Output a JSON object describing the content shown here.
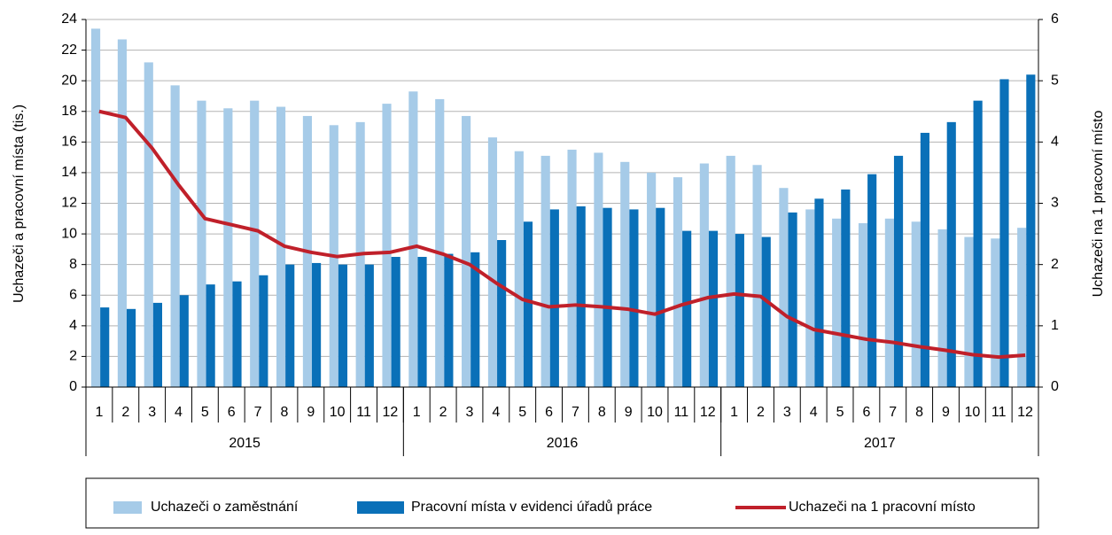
{
  "chart_data": {
    "type": "bar_line",
    "categories": [
      "1",
      "2",
      "3",
      "4",
      "5",
      "6",
      "7",
      "8",
      "9",
      "10",
      "11",
      "12",
      "1",
      "2",
      "3",
      "4",
      "5",
      "6",
      "7",
      "8",
      "9",
      "10",
      "11",
      "12",
      "1",
      "2",
      "3",
      "4",
      "5",
      "6",
      "7",
      "8",
      "9",
      "10",
      "11",
      "12"
    ],
    "years": [
      "2015",
      "2016",
      "2017"
    ],
    "y_label": "Uchazeči a pracovní místa (tis.)",
    "y2_label": "Uchazeči na 1 pracovní místo",
    "ylim": [
      0,
      24
    ],
    "yticks": [
      0,
      2,
      4,
      6,
      8,
      10,
      12,
      14,
      16,
      18,
      20,
      22,
      24
    ],
    "y2lim": [
      0,
      6
    ],
    "y2ticks": [
      0,
      1,
      2,
      3,
      4,
      5,
      6
    ],
    "grid": true,
    "series": [
      {
        "name": "Uchazeči o zaměstnání",
        "type": "bar",
        "color": "#a6cbe8",
        "values": [
          23.4,
          22.7,
          21.2,
          19.7,
          18.7,
          18.2,
          18.7,
          18.3,
          17.7,
          17.1,
          17.3,
          18.5,
          19.3,
          18.8,
          17.7,
          16.3,
          15.4,
          15.1,
          15.5,
          15.3,
          14.7,
          14.0,
          13.7,
          14.6,
          15.1,
          14.5,
          13.0,
          11.6,
          11.0,
          10.7,
          11.0,
          10.8,
          10.3,
          9.8,
          9.7,
          10.4
        ]
      },
      {
        "name": "Pracovní místa v evidenci úřadů práce",
        "type": "bar",
        "color": "#0a70b8",
        "values": [
          5.2,
          5.1,
          5.5,
          6.0,
          6.7,
          6.9,
          7.3,
          8.0,
          8.1,
          8.0,
          8.0,
          8.5,
          8.5,
          8.7,
          8.8,
          9.6,
          10.8,
          11.6,
          11.8,
          11.7,
          11.6,
          11.7,
          10.2,
          10.2,
          10.0,
          9.8,
          11.4,
          12.3,
          12.9,
          13.9,
          15.1,
          16.6,
          17.3,
          18.7,
          20.1,
          20.4
        ]
      },
      {
        "name": "Uchazeči na 1 pracovní místo",
        "type": "line",
        "axis": "y2",
        "color": "#c0202a",
        "values": [
          4.5,
          4.4,
          3.9,
          3.3,
          2.75,
          2.65,
          2.55,
          2.3,
          2.2,
          2.13,
          2.18,
          2.2,
          2.3,
          2.17,
          2.0,
          1.7,
          1.43,
          1.31,
          1.34,
          1.31,
          1.27,
          1.19,
          1.34,
          1.46,
          1.52,
          1.48,
          1.15,
          0.94,
          0.86,
          0.78,
          0.73,
          0.66,
          0.6,
          0.53,
          0.49,
          0.52
        ]
      }
    ]
  }
}
